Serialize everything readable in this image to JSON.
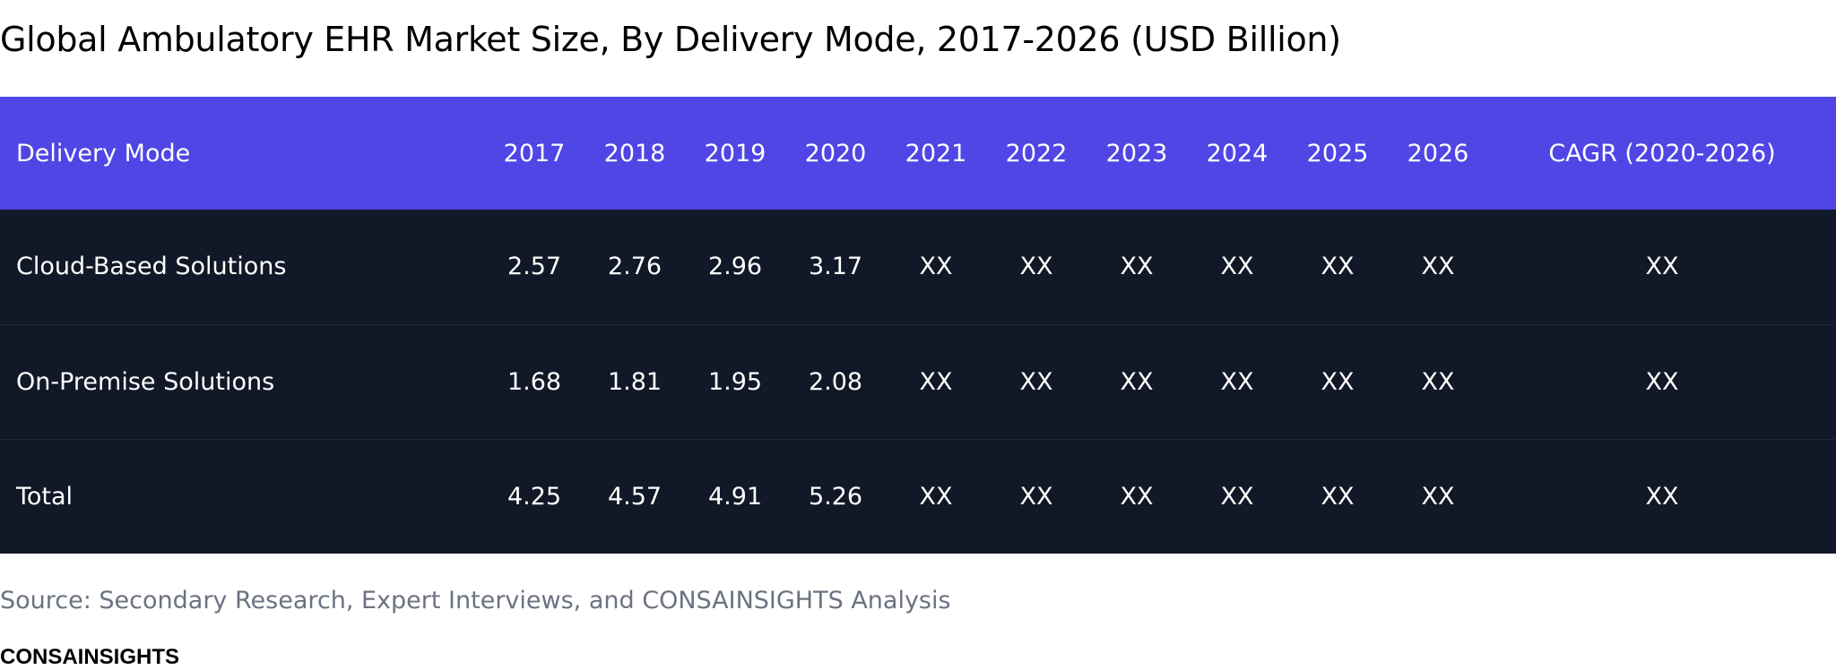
{
  "title": "Global Ambulatory EHR Market Size, By Delivery Mode, 2017-2026 (USD Billion)",
  "table": {
    "headers": [
      "Delivery Mode",
      "2017",
      "2018",
      "2019",
      "2020",
      "2021",
      "2022",
      "2023",
      "2024",
      "2025",
      "2026",
      "CAGR (2020-2026)"
    ],
    "rows": [
      [
        "Cloud-Based Solutions",
        "2.57",
        "2.76",
        "2.96",
        "3.17",
        "XX",
        "XX",
        "XX",
        "XX",
        "XX",
        "XX",
        "XX"
      ],
      [
        "On-Premise Solutions",
        "1.68",
        "1.81",
        "1.95",
        "2.08",
        "XX",
        "XX",
        "XX",
        "XX",
        "XX",
        "XX",
        "XX"
      ],
      [
        "Total",
        "4.25",
        "4.57",
        "4.91",
        "5.26",
        "XX",
        "XX",
        "XX",
        "XX",
        "XX",
        "XX",
        "XX"
      ]
    ]
  },
  "source": "Source: Secondary Research, Expert Interviews, and CONSAINSIGHTS Analysis",
  "brand": "CONSAINSIGHTS",
  "colors": {
    "header_bg": "#4f46e5",
    "body_bg": "#111827",
    "source_text": "#6b7280"
  }
}
